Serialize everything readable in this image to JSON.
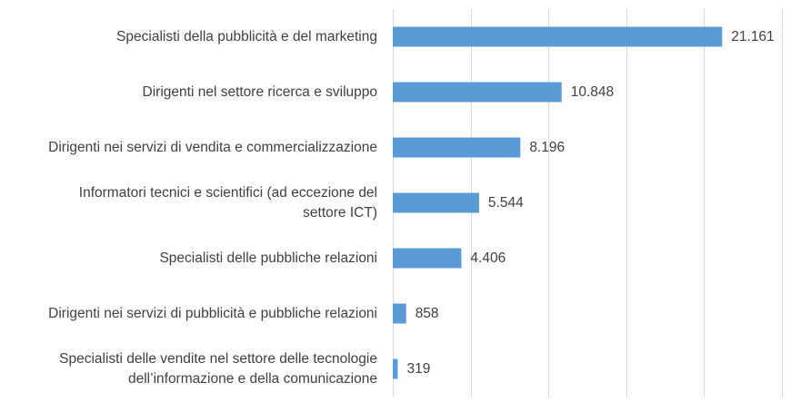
{
  "chart_data": {
    "type": "bar",
    "orientation": "horizontal",
    "title": "",
    "xlabel": "",
    "ylabel": "",
    "xlim": [
      0,
      25000
    ],
    "grid": true,
    "legend": "none",
    "bar_color": "#5b9bd5",
    "categories": [
      [
        "Specialisti della pubblicità e del marketing"
      ],
      [
        "Dirigenti nel settore ricerca e sviluppo"
      ],
      [
        "Dirigenti nei servizi di vendita e commercializzazione"
      ],
      [
        "Informatori tecnici e scientifici (ad eccezione del",
        "settore ICT)"
      ],
      [
        "Specialisti delle pubbliche relazioni"
      ],
      [
        "Dirigenti nei servizi di pubblicità e pubbliche relazioni"
      ],
      [
        "Specialisti delle vendite nel settore delle tecnologie",
        "dell’informazione e della comunicazione"
      ]
    ],
    "values": [
      21161,
      10848,
      8196,
      5544,
      4406,
      858,
      319
    ],
    "value_labels": [
      "21.161",
      "10.848",
      "8.196",
      "5.544",
      "4.406",
      "858",
      "319"
    ]
  }
}
